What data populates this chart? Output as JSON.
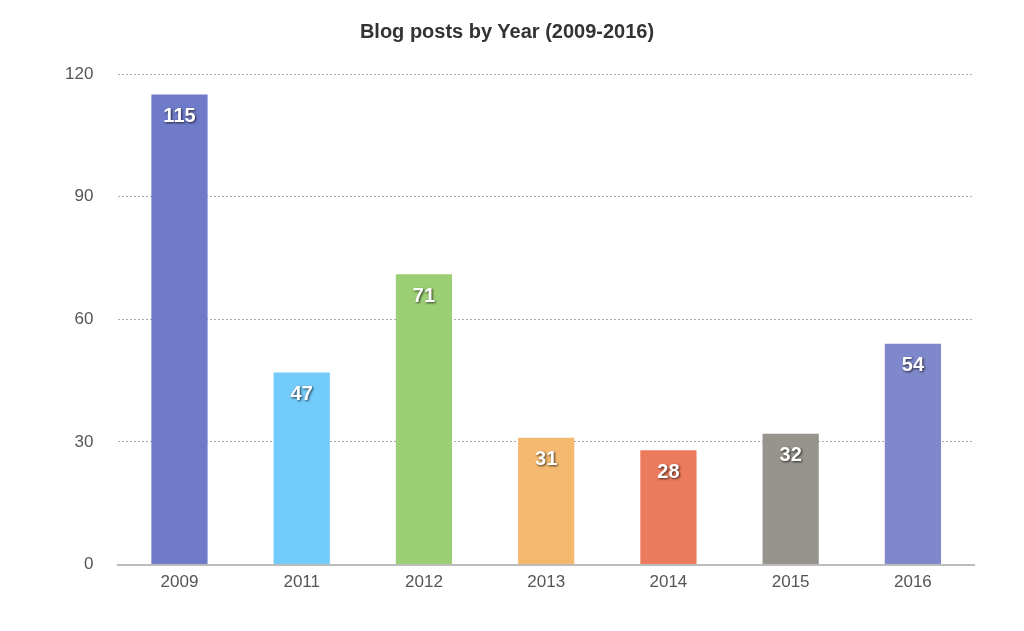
{
  "chart_data": {
    "type": "bar",
    "title": "Blog posts by Year (2009-2016)",
    "categories": [
      "2009",
      "2011",
      "2012",
      "2013",
      "2014",
      "2015",
      "2016"
    ],
    "values": [
      115,
      47,
      71,
      31,
      28,
      32,
      54
    ],
    "colors": [
      "#6f7bc8",
      "#72cbfa",
      "#9ccf74",
      "#f4b96f",
      "#ec7a5d",
      "#97948d",
      "#7e88cb"
    ],
    "ylim": [
      0,
      120
    ],
    "yticks": [
      0,
      30,
      60,
      90,
      120
    ],
    "grid": "y",
    "data_labels": true,
    "legend": false
  }
}
